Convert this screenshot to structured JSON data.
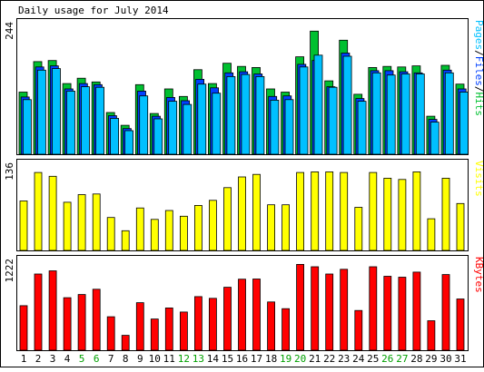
{
  "colors": {
    "background": "#ffffff",
    "panel": "#ffffff",
    "frame": "#000000",
    "hits": "#00c030",
    "files": "#0040ff",
    "pages": "#00c0ff",
    "visits": "#ffff00",
    "kbytes": "#ff0000",
    "weekend_label": "#00a000",
    "weekday_label": "#000000"
  },
  "chart_data": {
    "type": "bar",
    "title": "Daily usage for July 2014",
    "categories": [
      "1",
      "2",
      "3",
      "4",
      "5",
      "6",
      "7",
      "8",
      "9",
      "10",
      "11",
      "12",
      "13",
      "14",
      "15",
      "16",
      "17",
      "18",
      "19",
      "20",
      "21",
      "22",
      "23",
      "24",
      "25",
      "26",
      "27",
      "28",
      "29",
      "30",
      "31"
    ],
    "weekend_days": [
      "5",
      "6",
      "12",
      "13",
      "19",
      "20",
      "26",
      "27"
    ],
    "panels": [
      {
        "name": "hits",
        "ymax_label": "244",
        "legend_parts": [
          {
            "text": "Pages",
            "color": "#00c0ff"
          },
          {
            "text": "/",
            "color": "#000000"
          },
          {
            "text": "Files",
            "color": "#0040ff"
          },
          {
            "text": "/",
            "color": "#000000"
          },
          {
            "text": "Hits",
            "color": "#00c030"
          }
        ],
        "series": [
          {
            "name": "Hits",
            "color": "#00c030",
            "values": [
              116,
              173,
              175,
              132,
              142,
              135,
              78,
              54,
              130,
              76,
              122,
              108,
              158,
              132,
              170,
              164,
              162,
              122,
              116,
              182,
              230,
              137,
              213,
              112,
              162,
              164,
              163,
              165,
              71,
              166,
              131
            ]
          },
          {
            "name": "Files",
            "color": "#0040ff",
            "values": [
              107,
              163,
              165,
              122,
              132,
              130,
              72,
              48,
              118,
              71,
              106,
              100,
              140,
              124,
              152,
              154,
              150,
              108,
              109,
              168,
              175,
              126,
              189,
              104,
              156,
              156,
              154,
              152,
              65,
              157,
              122
            ]
          },
          {
            "name": "Pages",
            "color": "#00c0ff",
            "values": [
              102,
              157,
              160,
              118,
              126,
              125,
              67,
              44,
              109,
              66,
              99,
              93,
              131,
              114,
              145,
              149,
              145,
              101,
              102,
              163,
              185,
              125,
              183,
              99,
              152,
              148,
              150,
              150,
              60,
              152,
              116
            ]
          }
        ]
      },
      {
        "name": "visits",
        "ymax_label": "136",
        "legend_parts": [
          {
            "text": "Visits",
            "color": "#ffff00"
          }
        ],
        "series": [
          {
            "name": "Visits",
            "color": "#ffff00",
            "values": [
              78,
              123,
              117,
              76,
              88,
              89,
              52,
              31,
              67,
              49,
              63,
              54,
              71,
              79,
              99,
              116,
              120,
              72,
              72,
              123,
              124,
              124,
              123,
              68,
              123,
              114,
              112,
              124,
              50,
              114,
              74
            ]
          }
        ]
      },
      {
        "name": "kbytes",
        "ymax_label": "1222",
        "legend_parts": [
          {
            "text": "KBytes",
            "color": "#ff0000"
          }
        ],
        "series": [
          {
            "name": "KBytes",
            "color": "#ff0000",
            "values": [
              606,
              1037,
              1080,
              715,
              758,
              829,
              455,
              203,
              647,
              424,
              575,
              520,
              730,
              706,
              857,
              967,
              969,
              657,
              565,
              1168,
              1135,
              1037,
              1101,
              541,
              1135,
              1006,
              994,
              1063,
              401,
              1030,
              697
            ]
          }
        ]
      }
    ]
  }
}
